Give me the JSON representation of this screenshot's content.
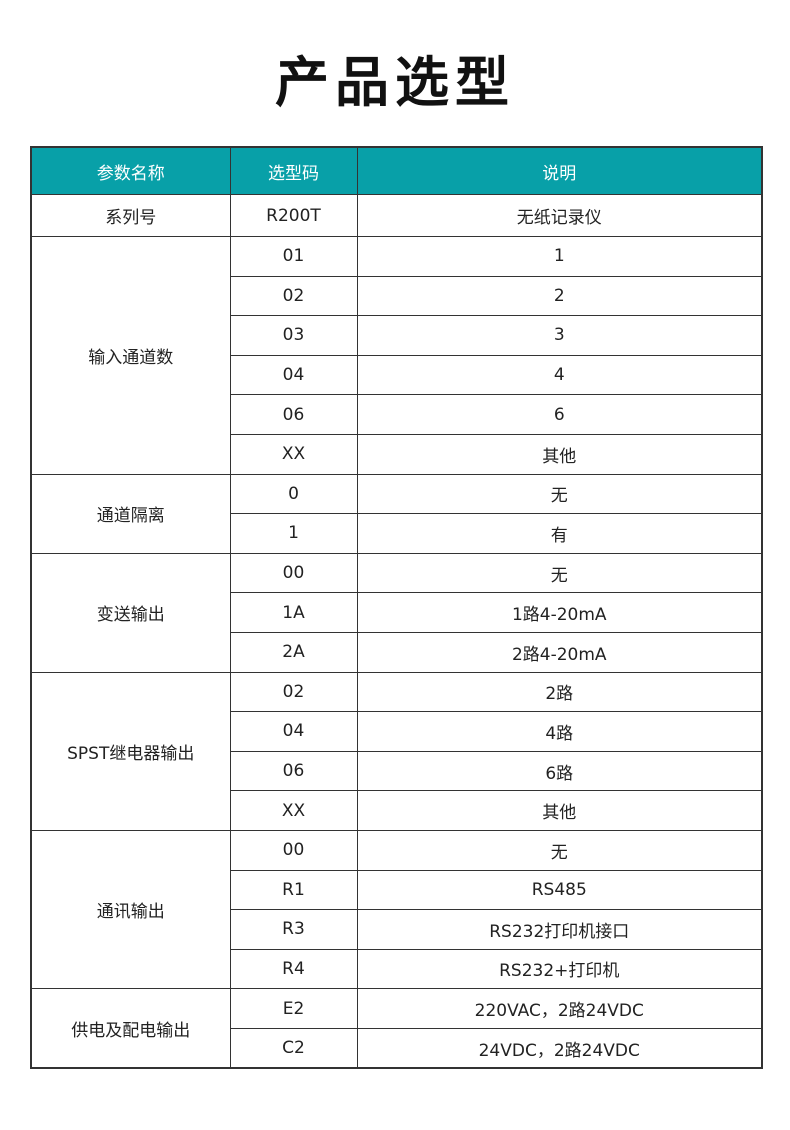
{
  "title": "产品选型",
  "table": {
    "headers": [
      "参数名称",
      "选型码",
      "说明"
    ],
    "groups": [
      {
        "name": "系列号",
        "rows": [
          [
            "R200T",
            "无纸记录仪"
          ]
        ]
      },
      {
        "name": "输入通道数",
        "rows": [
          [
            "01",
            "1"
          ],
          [
            "02",
            "2"
          ],
          [
            "03",
            "3"
          ],
          [
            "04",
            "4"
          ],
          [
            "06",
            "6"
          ],
          [
            "XX",
            "其他"
          ]
        ]
      },
      {
        "name": "通道隔离",
        "rows": [
          [
            "0",
            "无"
          ],
          [
            "1",
            "有"
          ]
        ]
      },
      {
        "name": "变送输出",
        "rows": [
          [
            "00",
            "无"
          ],
          [
            "1A",
            "1路4-20mA"
          ],
          [
            "2A",
            "2路4-20mA"
          ]
        ]
      },
      {
        "name": "SPST继电器输出",
        "rows": [
          [
            "02",
            "2路"
          ],
          [
            "04",
            "4路"
          ],
          [
            "06",
            "6路"
          ],
          [
            "XX",
            "其他"
          ]
        ]
      },
      {
        "name": "通讯输出",
        "rows": [
          [
            "00",
            "无"
          ],
          [
            "R1",
            "RS485"
          ],
          [
            "R3",
            "RS232打印机接口"
          ],
          [
            "R4",
            "RS232+打印机"
          ]
        ]
      },
      {
        "name": "供电及配电输出",
        "rows": [
          [
            "E2",
            "220VAC，2路24VDC"
          ],
          [
            "C2",
            "24VDC，2路24VDC"
          ]
        ]
      }
    ]
  },
  "colors": {
    "header_bg": "#08a0a8",
    "header_text": "#ffffff",
    "border": "#333333"
  }
}
